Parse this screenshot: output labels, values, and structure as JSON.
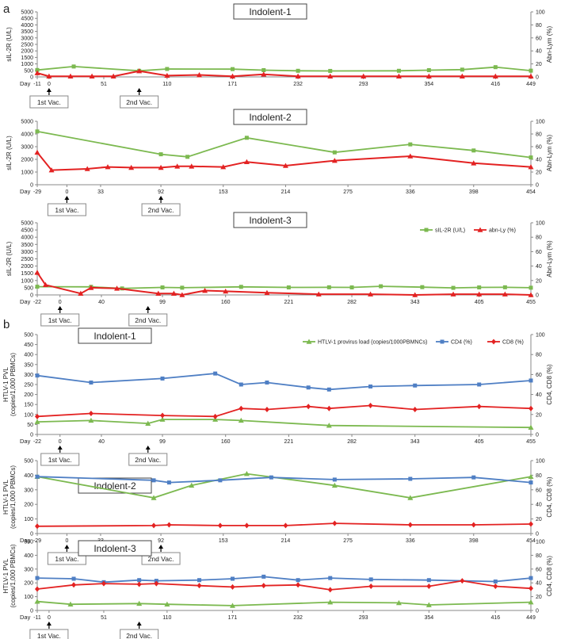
{
  "figure": {
    "panel_labels": [
      "a",
      "b"
    ],
    "day_label": "Day",
    "first_vac_label": "1st Vac.",
    "second_vac_label": "2nd Vac."
  },
  "colors": {
    "green": "#7cb950",
    "red": "#e32222",
    "blue": "#4f7fc4"
  },
  "chart_data": [
    {
      "type": "line",
      "panel": "a",
      "title": "Indolent-1",
      "xlabel": "Day",
      "ylabel_left": "sIL-2R (U/L)",
      "ylabel_right": "Abn-Lym (%)",
      "xlim": [
        -11,
        449
      ],
      "ylim_left": [
        0,
        5000
      ],
      "ylim_right": [
        0,
        100
      ],
      "xticks": [
        -11,
        0,
        51,
        110,
        171,
        232,
        293,
        354,
        416,
        449
      ],
      "yticks_left": [
        0,
        500,
        1000,
        1500,
        2000,
        2500,
        3000,
        3500,
        4000,
        4500,
        5000
      ],
      "yticks_right": [
        0,
        20,
        40,
        60,
        80,
        100
      ],
      "vaccinations": [
        0,
        84
      ],
      "legend": null,
      "series": [
        {
          "name": "sIL-2R (U/L)",
          "color": "green",
          "axis": "left",
          "marker": "square",
          "x": [
            -11,
            23,
            84,
            110,
            171,
            200,
            232,
            262,
            326,
            354,
            385,
            416,
            449
          ],
          "y": [
            530,
            800,
            470,
            610,
            600,
            520,
            470,
            460,
            470,
            520,
            560,
            750,
            480
          ]
        },
        {
          "name": "abn-Ly (%)",
          "color": "red",
          "axis": "right",
          "marker": "triangle",
          "x": [
            -11,
            0,
            20,
            40,
            60,
            84,
            110,
            140,
            171,
            200,
            232,
            262,
            293,
            326,
            354,
            385,
            416,
            449
          ],
          "y": [
            6,
            1,
            1,
            1,
            1,
            9,
            2,
            3,
            1,
            4,
            1,
            1,
            1,
            1,
            1,
            1,
            1,
            1
          ]
        }
      ]
    },
    {
      "type": "line",
      "panel": "a",
      "title": "Indolent-2",
      "xlabel": "Day",
      "ylabel_left": "sIL-2R (U/L)",
      "ylabel_right": "Abn-Lym (%)",
      "xlim": [
        -29,
        454
      ],
      "ylim_left": [
        0,
        5000
      ],
      "ylim_right": [
        0,
        100
      ],
      "xticks": [
        -29,
        0,
        33,
        92,
        153,
        214,
        275,
        336,
        398,
        454
      ],
      "yticks_left": [
        0,
        1000,
        2000,
        3000,
        4000,
        5000
      ],
      "yticks_right": [
        0,
        20,
        40,
        60,
        80,
        100
      ],
      "vaccinations": [
        0,
        92
      ],
      "legend": null,
      "series": [
        {
          "name": "sIL-2R (U/L)",
          "color": "green",
          "axis": "left",
          "marker": "square",
          "x": [
            -29,
            92,
            118,
            176,
            262,
            336,
            398,
            454
          ],
          "y": [
            4200,
            2400,
            2200,
            3700,
            2550,
            3180,
            2700,
            2150
          ]
        },
        {
          "name": "abn-Ly (%)",
          "color": "red",
          "axis": "right",
          "marker": "triangle",
          "x": [
            -29,
            -15,
            20,
            40,
            63,
            92,
            108,
            122,
            153,
            176,
            214,
            262,
            336,
            398,
            454
          ],
          "y": [
            51,
            23,
            25,
            28,
            27,
            27,
            29,
            29,
            28,
            36,
            30,
            38,
            45,
            34,
            28
          ]
        }
      ]
    },
    {
      "type": "line",
      "panel": "a",
      "title": "Indolent-3",
      "xlabel": "Day",
      "ylabel_left": "sIL-2R (U/L)",
      "ylabel_right": "Abn-Lym (%)",
      "xlim": [
        -22,
        455
      ],
      "ylim_left": [
        0,
        5000
      ],
      "ylim_right": [
        0,
        100
      ],
      "xticks": [
        -22,
        0,
        40,
        99,
        160,
        221,
        282,
        343,
        405,
        455
      ],
      "yticks_left": [
        0,
        500,
        1000,
        1500,
        2000,
        2500,
        3000,
        3500,
        4000,
        4500,
        5000
      ],
      "yticks_right": [
        0,
        20,
        40,
        60,
        80,
        100
      ],
      "vaccinations": [
        0,
        85
      ],
      "legend": [
        "sIL-2R (U/L)",
        "abn-Ly (%)"
      ],
      "series": [
        {
          "name": "sIL-2R (U/L)",
          "color": "green",
          "axis": "left",
          "marker": "square",
          "x": [
            -22,
            30,
            60,
            99,
            118,
            175,
            221,
            260,
            282,
            310,
            350,
            380,
            405,
            430,
            455
          ],
          "y": [
            570,
            560,
            450,
            520,
            500,
            560,
            520,
            530,
            520,
            600,
            540,
            490,
            520,
            530,
            500
          ]
        },
        {
          "name": "abn-Ly (%)",
          "color": "red",
          "axis": "right",
          "marker": "triangle",
          "x": [
            -22,
            -14,
            20,
            30,
            55,
            95,
            110,
            118,
            140,
            160,
            200,
            250,
            300,
            343,
            380,
            405,
            430,
            455
          ],
          "y": [
            31,
            14,
            2,
            10,
            9,
            2,
            2,
            0,
            6,
            5,
            3,
            1,
            1,
            0,
            1,
            1,
            1,
            0
          ]
        }
      ]
    },
    {
      "type": "line",
      "panel": "b",
      "title": "Indolent-1",
      "xlabel": "Day",
      "ylabel_left": "HTLV-1 PVL (copies/1,000 PBMCs)",
      "ylabel_right": "CD4, CD8 (%)",
      "xlim": [
        -22,
        455
      ],
      "ylim_left": [
        0,
        500
      ],
      "ylim_right": [
        0,
        100
      ],
      "xticks": [
        -22,
        0,
        40,
        99,
        160,
        221,
        282,
        343,
        405,
        455
      ],
      "yticks_left": [
        0,
        50,
        100,
        150,
        200,
        250,
        300,
        350,
        400,
        450,
        500
      ],
      "yticks_right": [
        0,
        20,
        40,
        60,
        80,
        100
      ],
      "vaccinations": [
        0,
        85
      ],
      "legend": [
        "HTLV-1 provirus load (copies/1000PBMNCs)",
        "CD4 (%)",
        "CD8 (%)"
      ],
      "series": [
        {
          "name": "HTLV-1 provirus load (copies/1000PBMNCs)",
          "color": "green",
          "axis": "left",
          "marker": "triangle",
          "x": [
            -22,
            30,
            85,
            99,
            150,
            175,
            260,
            455
          ],
          "y": [
            63,
            70,
            55,
            75,
            75,
            70,
            45,
            35
          ]
        },
        {
          "name": "CD4 (%)",
          "color": "blue",
          "axis": "right",
          "marker": "square",
          "x": [
            -22,
            30,
            99,
            150,
            175,
            200,
            240,
            260,
            300,
            343,
            405,
            455
          ],
          "y": [
            59,
            52,
            56,
            61,
            50,
            52,
            47,
            45,
            48,
            49,
            50,
            54
          ]
        },
        {
          "name": "CD8 (%)",
          "color": "red",
          "axis": "right",
          "marker": "diamond",
          "x": [
            -22,
            30,
            99,
            150,
            175,
            200,
            240,
            260,
            300,
            343,
            405,
            455
          ],
          "y": [
            18,
            21,
            19,
            18,
            26,
            25,
            28,
            26,
            29,
            25,
            28,
            26
          ]
        }
      ]
    },
    {
      "type": "line",
      "panel": "b",
      "title": "Indolent-2",
      "xlabel": "Day",
      "ylabel_left": "HTLV-1 PVL (copies/1,000 PBMCs)",
      "ylabel_right": "CD4, CD8 (%)",
      "xlim": [
        -29,
        454
      ],
      "ylim_left": [
        0,
        500
      ],
      "ylim_right": [
        0,
        100
      ],
      "xticks": [
        -29,
        0,
        33,
        92,
        153,
        214,
        275,
        336,
        398,
        454
      ],
      "yticks_left": [
        0,
        100,
        200,
        300,
        400,
        500
      ],
      "yticks_right": [
        0,
        20,
        40,
        60,
        80,
        100
      ],
      "vaccinations": [
        0,
        92
      ],
      "legend": null,
      "series": [
        {
          "name": "HTLV-1 provirus load (copies/1000PBMNCs)",
          "color": "green",
          "axis": "left",
          "marker": "triangle",
          "x": [
            -29,
            85,
            122,
            176,
            262,
            336,
            454
          ],
          "y": [
            390,
            245,
            330,
            410,
            330,
            245,
            390
          ]
        },
        {
          "name": "CD4 (%)",
          "color": "blue",
          "axis": "right",
          "marker": "square",
          "x": [
            -29,
            85,
            100,
            150,
            200,
            262,
            336,
            398,
            454
          ],
          "y": [
            78,
            73,
            70,
            73,
            77,
            74,
            75,
            77,
            70
          ]
        },
        {
          "name": "CD8 (%)",
          "color": "red",
          "axis": "right",
          "marker": "diamond",
          "x": [
            -29,
            85,
            100,
            150,
            176,
            214,
            262,
            336,
            398,
            454
          ],
          "y": [
            10,
            11,
            12,
            11,
            11,
            11,
            14,
            12,
            12,
            13
          ]
        }
      ]
    },
    {
      "type": "line",
      "panel": "b",
      "title": "Indolent-3",
      "xlabel": "Day",
      "ylabel_left": "HTLV-1 PVL (copies/1,000 PBMCs)",
      "ylabel_right": "CD4, CD8 (%)",
      "xlim": [
        -11,
        449
      ],
      "ylim_left": [
        0,
        500
      ],
      "ylim_right": [
        0,
        100
      ],
      "xticks": [
        -11,
        0,
        51,
        110,
        171,
        232,
        293,
        354,
        416,
        449
      ],
      "yticks_left": [
        0,
        100,
        200,
        300,
        400,
        500
      ],
      "yticks_right": [
        0,
        20,
        40,
        60,
        80,
        100
      ],
      "vaccinations": [
        0,
        84
      ],
      "legend": null,
      "series": [
        {
          "name": "HTLV-1 provirus load (copies/1000PBMNCs)",
          "color": "green",
          "axis": "left",
          "marker": "triangle",
          "x": [
            -11,
            20,
            84,
            110,
            171,
            262,
            326,
            354,
            449
          ],
          "y": [
            65,
            45,
            50,
            45,
            35,
            60,
            55,
            40,
            60
          ]
        },
        {
          "name": "CD4 (%)",
          "color": "blue",
          "axis": "right",
          "marker": "square",
          "x": [
            -11,
            23,
            51,
            84,
            100,
            140,
            171,
            200,
            232,
            262,
            300,
            354,
            416,
            449
          ],
          "y": [
            47,
            46,
            41,
            44,
            43,
            44,
            46,
            49,
            44,
            47,
            45,
            44,
            42,
            47
          ]
        },
        {
          "name": "CD8 (%)",
          "color": "red",
          "axis": "right",
          "marker": "diamond",
          "x": [
            -11,
            23,
            51,
            84,
            100,
            140,
            171,
            200,
            232,
            262,
            300,
            354,
            385,
            416,
            449
          ],
          "y": [
            31,
            37,
            39,
            38,
            39,
            36,
            34,
            36,
            37,
            30,
            35,
            35,
            43,
            35,
            32
          ]
        }
      ]
    }
  ]
}
